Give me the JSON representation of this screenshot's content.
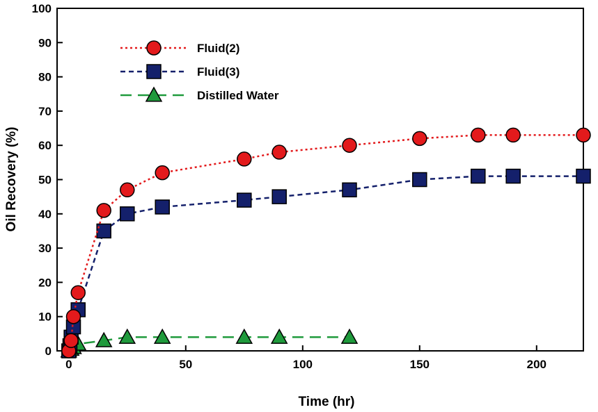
{
  "chart_data": {
    "type": "line",
    "xlabel": "Time (hr)",
    "ylabel": "Oil Recovery (%)",
    "xlim": [
      -5,
      220
    ],
    "ylim": [
      0,
      100
    ],
    "xticks": [
      0,
      50,
      100,
      150,
      200
    ],
    "yticks": [
      0,
      10,
      20,
      30,
      40,
      50,
      60,
      70,
      80,
      90,
      100
    ],
    "grid": false,
    "legend_position": "top-left",
    "series": [
      {
        "name": "Fluid(2)",
        "color": "#e31a1c",
        "marker": "circle",
        "line_style": "dotted",
        "x": [
          0,
          1,
          2,
          4,
          15,
          25,
          40,
          75,
          90,
          120,
          150,
          175,
          190,
          220
        ],
        "y": [
          0,
          3,
          10,
          17,
          41,
          47,
          52,
          56,
          58,
          60,
          62,
          63,
          63,
          63
        ]
      },
      {
        "name": "Fluid(3)",
        "color": "#14206b",
        "marker": "square",
        "line_style": "dashed",
        "x": [
          0,
          0.5,
          1,
          2,
          4,
          15,
          25,
          40,
          75,
          90,
          120,
          150,
          175,
          190,
          220
        ],
        "y": [
          0,
          1.5,
          4,
          7,
          12,
          35,
          40,
          42,
          44,
          45,
          47,
          50,
          51,
          51,
          51
        ]
      },
      {
        "name": "Distilled Water",
        "color": "#1f9a3c",
        "marker": "triangle",
        "line_style": "long-dash",
        "x": [
          0,
          1,
          2,
          4,
          15,
          25,
          40,
          75,
          90,
          120
        ],
        "y": [
          0,
          0.5,
          1,
          2,
          3,
          4,
          4,
          4,
          4,
          4
        ]
      }
    ]
  }
}
